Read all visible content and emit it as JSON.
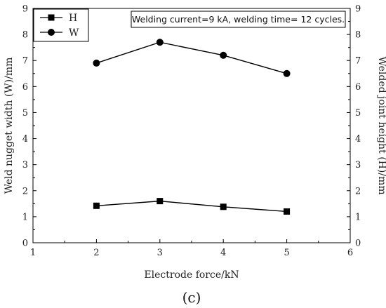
{
  "chart_data": {
    "type": "line",
    "xlabel": "Electrode force/kN",
    "ylabel_left": "Weld nugget width (W)/mm",
    "ylabel_right": "Welded joint height (H)/mm",
    "xlim": [
      1,
      6
    ],
    "ylim": [
      0,
      9
    ],
    "xticks": [
      "1",
      "2",
      "3",
      "4",
      "5",
      "6"
    ],
    "yticks": [
      "0",
      "1",
      "2",
      "3",
      "4",
      "5",
      "6",
      "7",
      "8",
      "9"
    ],
    "x": [
      2,
      3,
      4,
      5
    ],
    "series": [
      {
        "name": "H",
        "marker": "square",
        "values": [
          1.42,
          1.6,
          1.38,
          1.2
        ]
      },
      {
        "name": "W",
        "marker": "circle",
        "values": [
          6.9,
          7.7,
          7.2,
          6.5
        ]
      }
    ],
    "annotation": "Welding current=9 kA, welding time= 12 cycles.",
    "panel_label": "(c)",
    "legend_position": "top-left",
    "grid": false
  }
}
